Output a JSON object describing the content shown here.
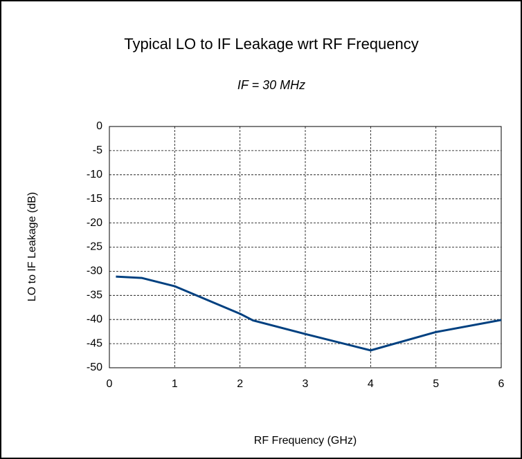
{
  "chart_data": {
    "type": "line",
    "title": "Typical LO to IF Leakage wrt RF Frequency",
    "subtitle": "IF = 30 MHz",
    "x_label": "RF Frequency (GHz)",
    "y_label": "LO to IF Leakage (dB)",
    "x": [
      0.1,
      0.5,
      1,
      2,
      2.2,
      3,
      4,
      5,
      6
    ],
    "series": [
      {
        "name": "LO to IF Leakage",
        "color": "#004080",
        "values": [
          -31.1,
          -31.4,
          -33.1,
          -38.8,
          -40.2,
          -43,
          -46.4,
          -42.6,
          -40.1
        ]
      }
    ],
    "xlim": [
      0,
      6
    ],
    "xticks": [
      0,
      1,
      2,
      3,
      4,
      5,
      6
    ],
    "ylim": [
      -50,
      0
    ],
    "yticks": [
      0,
      -5,
      -10,
      -15,
      -20,
      -25,
      -30,
      -35,
      -40,
      -45,
      -50
    ],
    "grid": true
  }
}
